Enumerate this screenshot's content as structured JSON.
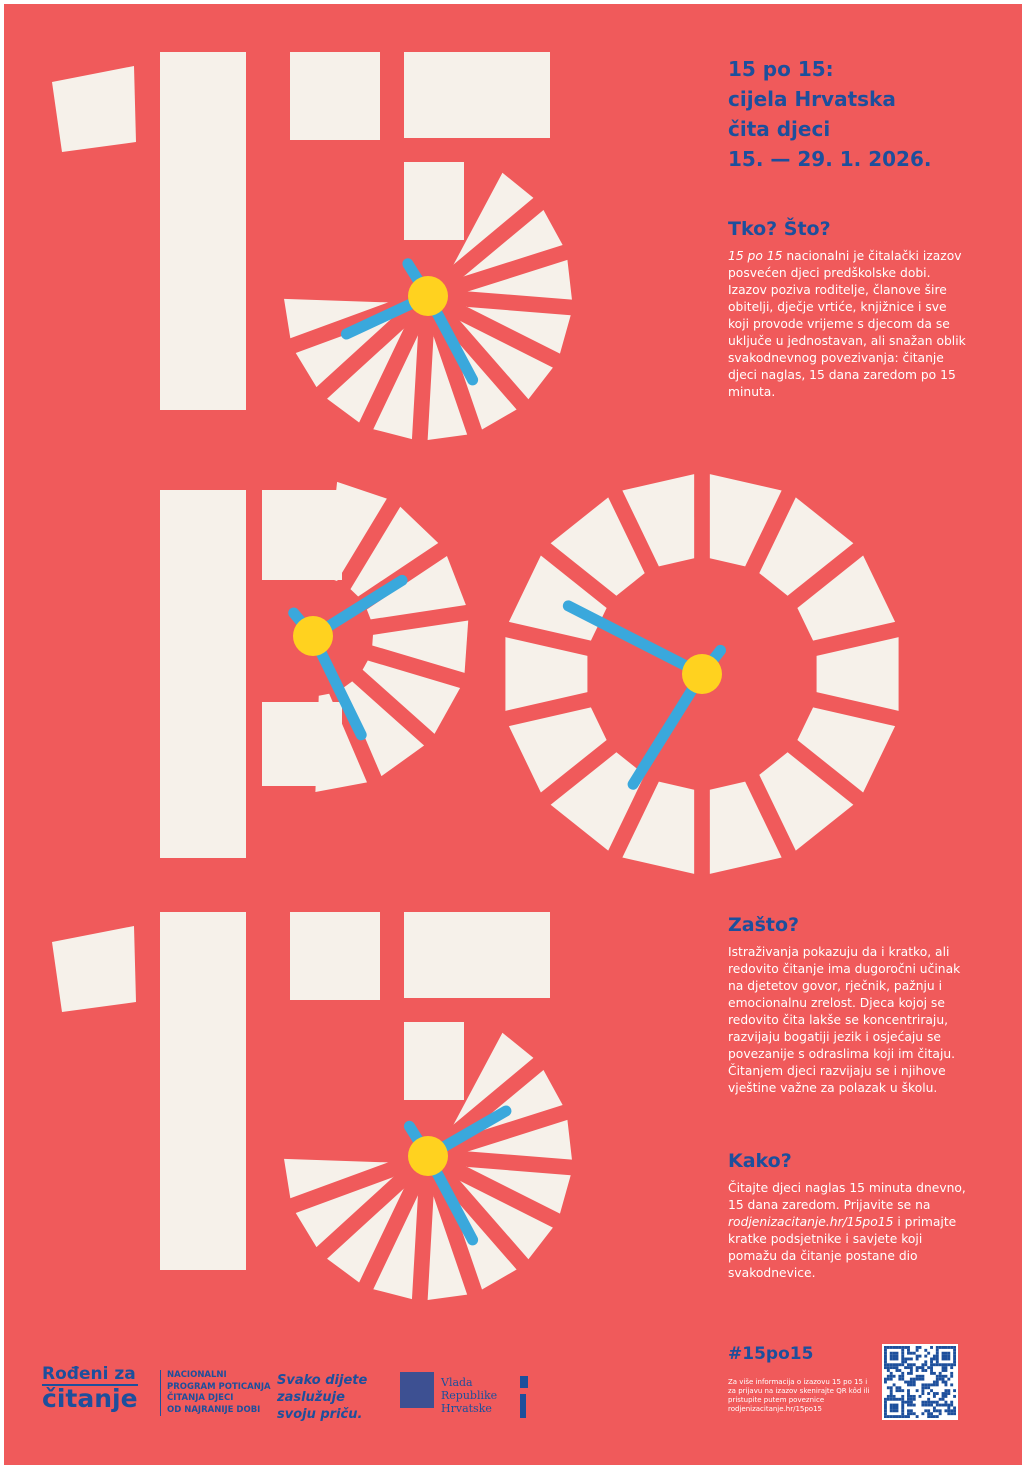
{
  "header": {
    "lines": [
      "15 po 15:",
      "cijela Hrvatska",
      "čita djeci",
      "15. — 29. 1. 2026."
    ]
  },
  "sections": [
    {
      "heading": "Tko? Što?",
      "lead_italic": "15 po 15",
      "body": " nacionalni je čitalački izazov posvećen djeci predškolske dobi. Izazov poziva roditelje, članove šire obitelji, dječje vrtiće, knjižnice i sve koji provode vrijeme s djecom da se uključe u jednostavan, ali snažan oblik svakodnevnog povezivanja: čitanje djeci naglas, 15 dana zaredom po 15 minuta."
    },
    {
      "heading": "Zašto?",
      "body": "Istraživanja pokazuju da i kratko, ali redovito čitanje ima dugoročni učinak na djetetov govor, rječnik, pažnju i emocionalnu zrelost. Djeca kojoj se redovito čita lakše se koncentriraju, razvijaju bogatiji jezik i osjećaju se povezanije s odraslima koji im čitaju. Čitanjem djeci razvijaju se i njihove vještine važne za polazak u školu."
    },
    {
      "heading": "Kako?",
      "body_before": "Čitajte djeci naglas 15 minuta dnevno, 15 dana zaredom. Prijavite se na ",
      "link": "rodjenizacitanje.hr/15po15",
      "body_after": " i primajte kratke podsjetnike i savjete koji pomažu da čitanje postane dio svakodnevice."
    }
  ],
  "hashtag": "#15po15",
  "qr_note": "Za više informacija o izazovu 15 po 15 i za prijavu na izazov skenirajte QR kôd ili pristupite putem poveznice rodjenizacitanje.hr/15po15",
  "footer": {
    "logo": [
      "Rođeni za",
      "čitanje"
    ],
    "program": [
      "NACIONALNI",
      "PROGRAM POTICANJA",
      "ČITANJA DJECI",
      "OD NAJRANIJE DOBI"
    ],
    "slogan": [
      "Svako dijete",
      "zaslužuje",
      "svoju priču."
    ],
    "government": [
      "Vlada",
      "Republike",
      "Hrvatske"
    ]
  }
}
